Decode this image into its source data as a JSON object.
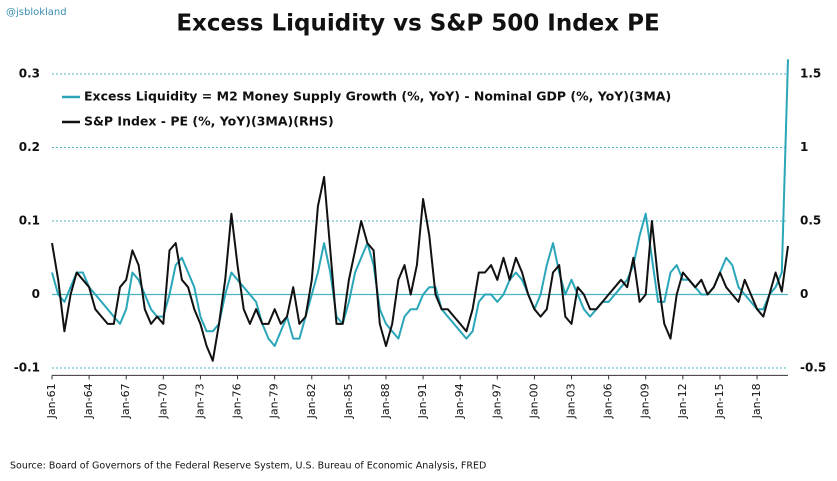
{
  "chart_data": {
    "type": "line",
    "handle": "@jsblokland",
    "title": "Excess Liquidity vs S&P 500 Index PE",
    "source": "Source: Board of Governors of the Federal Reserve System, U.S. Bureau of Economic Analysis, FRED",
    "x": [
      1961,
      1961.5,
      1962,
      1962.5,
      1963,
      1963.5,
      1964,
      1964.5,
      1965,
      1965.5,
      1966,
      1966.5,
      1967,
      1967.5,
      1968,
      1968.5,
      1969,
      1969.5,
      1970,
      1970.5,
      1971,
      1971.5,
      1972,
      1972.5,
      1973,
      1973.5,
      1974,
      1974.5,
      1975,
      1975.5,
      1976,
      1976.5,
      1977,
      1977.5,
      1978,
      1978.5,
      1979,
      1979.5,
      1980,
      1980.5,
      1981,
      1981.5,
      1982,
      1982.5,
      1983,
      1983.5,
      1984,
      1984.5,
      1985,
      1985.5,
      1986,
      1986.5,
      1987,
      1987.5,
      1988,
      1988.5,
      1989,
      1989.5,
      1990,
      1990.5,
      1991,
      1991.5,
      1992,
      1992.5,
      1993,
      1993.5,
      1994,
      1994.5,
      1995,
      1995.5,
      1996,
      1996.5,
      1997,
      1997.5,
      1998,
      1998.5,
      1999,
      1999.5,
      2000,
      2000.5,
      2001,
      2001.5,
      2002,
      2002.5,
      2003,
      2003.5,
      2004,
      2004.5,
      2005,
      2005.5,
      2006,
      2006.5,
      2007,
      2007.5,
      2008,
      2008.5,
      2009,
      2009.5,
      2010,
      2010.5,
      2011,
      2011.5,
      2012,
      2012.5,
      2013,
      2013.5,
      2014,
      2014.5,
      2015,
      2015.5,
      2016,
      2016.5,
      2017,
      2017.5,
      2018,
      2018.5,
      2019,
      2019.5,
      2020,
      2020.5
    ],
    "series": [
      {
        "name": "Excess Liquidity = M2 Money Supply Growth (%, YoY) - Nominal GDP (%, YoY)(3MA)",
        "color": "#2aa6b8",
        "values": [
          0.03,
          0.0,
          -0.01,
          0.01,
          0.03,
          0.03,
          0.01,
          0.0,
          -0.01,
          -0.02,
          -0.03,
          -0.04,
          -0.02,
          0.03,
          0.02,
          0.0,
          -0.02,
          -0.03,
          -0.03,
          0.0,
          0.04,
          0.05,
          0.03,
          0.01,
          -0.03,
          -0.05,
          -0.05,
          -0.04,
          0.0,
          0.03,
          0.02,
          0.01,
          0.0,
          -0.01,
          -0.04,
          -0.06,
          -0.07,
          -0.05,
          -0.03,
          -0.06,
          -0.06,
          -0.03,
          0.0,
          0.03,
          0.07,
          0.03,
          -0.03,
          -0.04,
          -0.01,
          0.03,
          0.05,
          0.07,
          0.04,
          -0.02,
          -0.04,
          -0.05,
          -0.06,
          -0.03,
          -0.02,
          -0.02,
          0.0,
          0.01,
          0.01,
          -0.02,
          -0.03,
          -0.04,
          -0.05,
          -0.06,
          -0.05,
          -0.01,
          0.0,
          0.0,
          -0.01,
          0.0,
          0.02,
          0.03,
          0.02,
          0.0,
          -0.02,
          0.0,
          0.04,
          0.07,
          0.03,
          0.0,
          0.02,
          0.0,
          -0.02,
          -0.03,
          -0.02,
          -0.01,
          -0.01,
          0.0,
          0.01,
          0.02,
          0.04,
          0.08,
          0.11,
          0.05,
          -0.01,
          -0.01,
          0.03,
          0.04,
          0.02,
          0.02,
          0.01,
          0.0,
          0.0,
          0.01,
          0.03,
          0.05,
          0.04,
          0.01,
          0.0,
          -0.01,
          -0.02,
          -0.02,
          0.0,
          0.01,
          0.03,
          0.32
        ]
      },
      {
        "name": "S&P Index - PE (%, YoY)(3MA)(RHS)",
        "color": "#111111",
        "axis": "y2",
        "values": [
          0.35,
          0.1,
          -0.25,
          0.0,
          0.15,
          0.1,
          0.05,
          -0.1,
          -0.15,
          -0.2,
          -0.2,
          0.05,
          0.1,
          0.3,
          0.2,
          -0.1,
          -0.2,
          -0.15,
          -0.2,
          0.3,
          0.35,
          0.1,
          0.05,
          -0.1,
          -0.2,
          -0.35,
          -0.45,
          -0.2,
          0.1,
          0.55,
          0.2,
          -0.1,
          -0.2,
          -0.1,
          -0.2,
          -0.2,
          -0.1,
          -0.2,
          -0.15,
          0.05,
          -0.2,
          -0.15,
          0.1,
          0.6,
          0.8,
          0.3,
          -0.2,
          -0.2,
          0.1,
          0.3,
          0.5,
          0.35,
          0.3,
          -0.2,
          -0.35,
          -0.2,
          0.1,
          0.2,
          0.0,
          0.2,
          0.65,
          0.4,
          0.0,
          -0.1,
          -0.1,
          -0.15,
          -0.2,
          -0.25,
          -0.1,
          0.15,
          0.15,
          0.2,
          0.1,
          0.25,
          0.1,
          0.25,
          0.15,
          0.0,
          -0.1,
          -0.15,
          -0.1,
          0.15,
          0.2,
          -0.15,
          -0.2,
          0.05,
          0.0,
          -0.1,
          -0.1,
          -0.05,
          0.0,
          0.05,
          0.1,
          0.05,
          0.25,
          -0.05,
          0.0,
          0.5,
          0.1,
          -0.2,
          -0.3,
          0.0,
          0.15,
          0.1,
          0.05,
          0.1,
          0.0,
          0.05,
          0.15,
          0.05,
          0.0,
          -0.05,
          0.1,
          0.0,
          -0.1,
          -0.15,
          0.0,
          0.15,
          0.02,
          0.33
        ]
      }
    ],
    "xlim": [
      1961,
      2020.5
    ],
    "xticks": [
      {
        "value": 1961,
        "label": "Jan-61"
      },
      {
        "value": 1964,
        "label": "Jan-64"
      },
      {
        "value": 1967,
        "label": "Jan-67"
      },
      {
        "value": 1970,
        "label": "Jan-70"
      },
      {
        "value": 1973,
        "label": "Jan-73"
      },
      {
        "value": 1976,
        "label": "Jan-76"
      },
      {
        "value": 1979,
        "label": "Jan-79"
      },
      {
        "value": 1982,
        "label": "Jan-82"
      },
      {
        "value": 1985,
        "label": "Jan-85"
      },
      {
        "value": 1988,
        "label": "Jan-88"
      },
      {
        "value": 1991,
        "label": "Jan-91"
      },
      {
        "value": 1994,
        "label": "Jan-94"
      },
      {
        "value": 1997,
        "label": "Jan-97"
      },
      {
        "value": 2000,
        "label": "Jan-00"
      },
      {
        "value": 2003,
        "label": "Jan-03"
      },
      {
        "value": 2006,
        "label": "Jan-06"
      },
      {
        "value": 2009,
        "label": "Jan-09"
      },
      {
        "value": 2012,
        "label": "Jan-12"
      },
      {
        "value": 2015,
        "label": "Jan-15"
      },
      {
        "value": 2018,
        "label": "Jan-18"
      }
    ],
    "ylim": [
      -0.11,
      0.32
    ],
    "yticks": [
      -0.1,
      0,
      0.1,
      0.2,
      0.3
    ],
    "y2lim": [
      -0.55,
      1.6
    ],
    "y2ticks": [
      -0.5,
      0,
      0.5,
      1,
      1.5
    ],
    "grid": true,
    "legend": "upper left"
  }
}
